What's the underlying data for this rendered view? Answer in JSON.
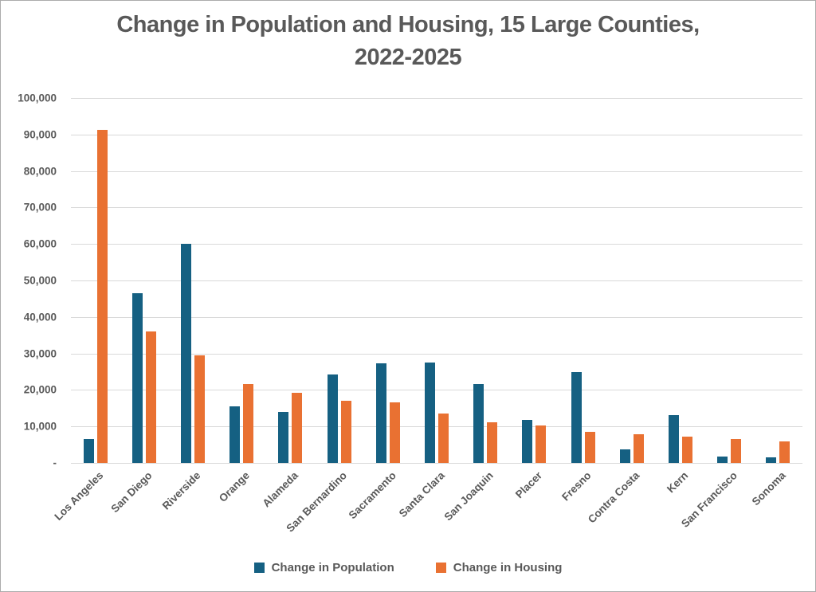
{
  "title": {
    "line1": "Change in Population and Housing, 15 Large Counties,",
    "line2": "2022-2025"
  },
  "colors": {
    "population_series": "#156082",
    "housing_series": "#E97132",
    "text": "#595959",
    "gridline": "#D9D9D9",
    "canvas_border": "#ABABAB"
  },
  "chart_data": {
    "type": "bar",
    "title": "Change in Population and Housing, 15 Large Counties, 2022-2025",
    "xlabel": "",
    "ylabel": "",
    "ylim": [
      0,
      100000
    ],
    "grid": true,
    "legend_position": "bottom",
    "y_ticks": [
      {
        "label": "100,000",
        "value": 100000
      },
      {
        "label": "90,000",
        "value": 90000
      },
      {
        "label": "80,000",
        "value": 80000
      },
      {
        "label": "70,000",
        "value": 70000
      },
      {
        "label": "60,000",
        "value": 60000
      },
      {
        "label": "50,000",
        "value": 50000
      },
      {
        "label": "40,000",
        "value": 40000
      },
      {
        "label": "30,000",
        "value": 30000
      },
      {
        "label": "20,000",
        "value": 20000
      },
      {
        "label": "10,000",
        "value": 10000
      },
      {
        "label": "-",
        "value": 0
      }
    ],
    "categories": [
      "Los Angeles",
      "San Diego",
      "Riverside",
      "Orange",
      "Alameda",
      "San Bernardino",
      "Sacramento",
      "Santa Clara",
      "San Joaquin",
      "Placer",
      "Fresno",
      "Contra Costa",
      "Kern",
      "San Francisco",
      "Sonoma"
    ],
    "series": [
      {
        "name": "Change in Population",
        "color": "#156082",
        "values": [
          6500,
          46600,
          60000,
          15500,
          13900,
          24300,
          27200,
          27600,
          21700,
          11700,
          24800,
          3800,
          13200,
          1700,
          1600
        ]
      },
      {
        "name": "Change in Housing",
        "color": "#E97132",
        "values": [
          91300,
          36100,
          29400,
          21600,
          19200,
          17100,
          16600,
          13500,
          11200,
          10300,
          8600,
          7900,
          7100,
          6600,
          5900
        ]
      }
    ]
  }
}
